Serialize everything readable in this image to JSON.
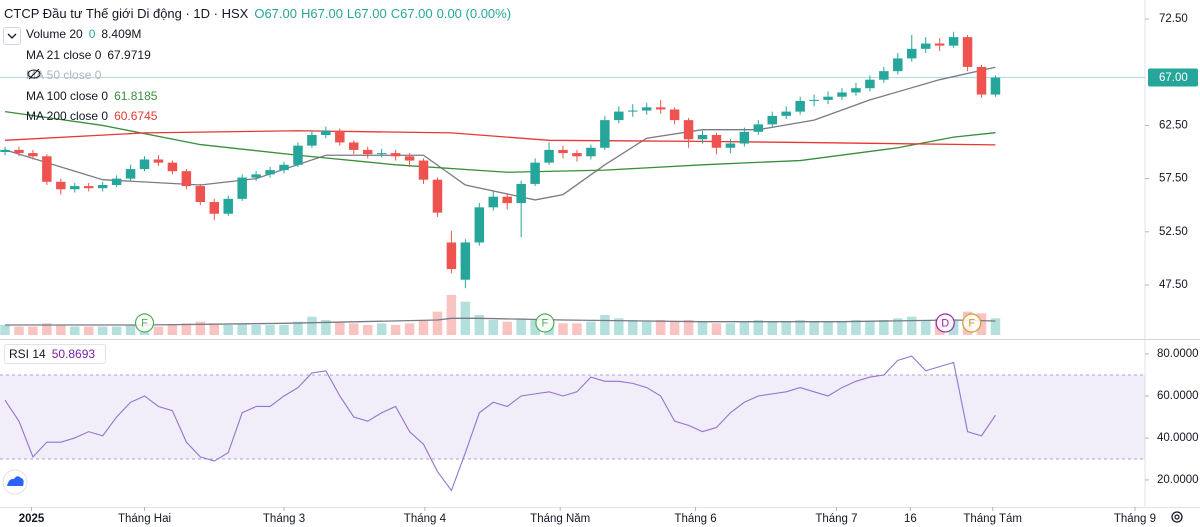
{
  "chart_data": {
    "type": "candlestick",
    "title": "CTCP Đầu tư Thế giới Di động · 1D · HSX",
    "ohlc_legend": [
      "O67.00",
      "H67.00",
      "L67.00",
      "C67.00",
      "0.00 (0.00%)"
    ],
    "up_color": "#26a69a",
    "down_color": "#ef5350",
    "xlim": [
      -0.36,
      81.72
    ],
    "xticks": [
      {
        "value": 1.9,
        "label": "2025"
      },
      {
        "value": 10,
        "label": "Tháng Hai"
      },
      {
        "value": 20,
        "label": "Tháng 3"
      },
      {
        "value": 30.1,
        "label": "Tháng 4"
      },
      {
        "value": 39.8,
        "label": "Tháng Năm"
      },
      {
        "value": 49.5,
        "label": "Tháng 6"
      },
      {
        "value": 59.6,
        "label": "Tháng 7"
      },
      {
        "value": 64.9,
        "label": "16"
      },
      {
        "value": 70.8,
        "label": "Tháng Tám"
      },
      {
        "value": 81,
        "label": "Tháng 9"
      }
    ],
    "ylim": [
      42.52,
      74.29
    ],
    "yticks": [
      {
        "value": 47.5,
        "label": "47.50"
      },
      {
        "value": 52.5,
        "label": "52.50"
      },
      {
        "value": 57.5,
        "label": "57.50"
      },
      {
        "value": 62.5,
        "label": "62.50"
      },
      {
        "value": 72.5,
        "label": "72.50"
      }
    ],
    "x": [
      0,
      1,
      2,
      3,
      4,
      5,
      6,
      7,
      8,
      9,
      10,
      11,
      12,
      13,
      14,
      15,
      16,
      17,
      18,
      19,
      20,
      21,
      22,
      23,
      24,
      25,
      26,
      27,
      28,
      29,
      30,
      31,
      32,
      33,
      34,
      35,
      36,
      37,
      38,
      39,
      40,
      41,
      42,
      43,
      44,
      45,
      46,
      47,
      48,
      49,
      50,
      51,
      52,
      53,
      54,
      55,
      56,
      57,
      58,
      59,
      60,
      61,
      62,
      63,
      64,
      65,
      66,
      67,
      68,
      69,
      70,
      71
    ],
    "open": [
      60.0,
      60.2,
      59.9,
      59.6,
      57.2,
      56.5,
      56.8,
      56.6,
      56.9,
      57.5,
      58.4,
      59.3,
      59.0,
      58.2,
      56.8,
      55.3,
      54.2,
      55.6,
      57.6,
      57.9,
      58.3,
      58.8,
      60.6,
      61.6,
      62.0,
      60.9,
      60.2,
      59.8,
      59.9,
      59.6,
      59.2,
      57.4,
      51.5,
      48.0,
      51.5,
      54.8,
      55.8,
      55.2,
      57.0,
      59.0,
      60.2,
      59.9,
      59.6,
      60.4,
      63.0,
      63.8,
      63.9,
      64.2,
      64.0,
      63.0,
      61.2,
      61.6,
      60.4,
      60.8,
      61.9,
      62.6,
      63.4,
      63.8,
      64.8,
      64.9,
      65.2,
      65.6,
      66.0,
      66.8,
      67.6,
      68.8,
      69.7,
      70.2,
      70.0,
      70.8,
      68.0,
      65.4
    ],
    "high": [
      60.5,
      60.5,
      60.2,
      59.8,
      57.5,
      57.1,
      57.1,
      57.2,
      57.8,
      58.8,
      59.6,
      59.7,
      59.2,
      58.4,
      57.0,
      55.6,
      55.9,
      57.9,
      58.2,
      58.6,
      59.1,
      60.9,
      62.0,
      62.4,
      62.2,
      61.1,
      60.5,
      60.3,
      60.2,
      59.9,
      59.4,
      57.6,
      52.6,
      51.8,
      55.2,
      56.3,
      56.1,
      57.3,
      59.4,
      60.9,
      60.6,
      60.2,
      60.7,
      63.4,
      64.3,
      64.5,
      64.6,
      64.9,
      64.2,
      63.2,
      62.0,
      61.8,
      61.2,
      62.3,
      63.0,
      63.8,
      64.3,
      65.2,
      65.4,
      65.7,
      66.0,
      66.5,
      67.2,
      68.0,
      69.3,
      71.0,
      70.8,
      70.7,
      71.3,
      71.0,
      68.2,
      67.2
    ],
    "low": [
      59.7,
      59.6,
      59.3,
      56.9,
      56.0,
      56.2,
      56.3,
      56.3,
      56.7,
      57.3,
      58.2,
      58.7,
      57.9,
      56.5,
      55.0,
      53.6,
      54.0,
      55.4,
      57.3,
      57.6,
      58.0,
      58.6,
      60.4,
      61.3,
      60.6,
      59.8,
      59.4,
      59.5,
      59.2,
      58.6,
      57.0,
      53.9,
      48.6,
      47.2,
      51.2,
      54.5,
      54.6,
      52.0,
      56.8,
      58.8,
      59.4,
      59.1,
      59.3,
      60.2,
      62.7,
      63.3,
      63.5,
      63.6,
      62.6,
      60.4,
      60.8,
      59.8,
      59.9,
      60.5,
      61.6,
      62.3,
      63.1,
      63.5,
      64.3,
      64.5,
      64.9,
      65.3,
      65.7,
      66.5,
      67.3,
      68.5,
      69.3,
      69.5,
      69.8,
      67.6,
      65.1,
      65.2
    ],
    "close": [
      60.2,
      59.9,
      59.6,
      57.2,
      56.5,
      56.8,
      56.6,
      56.9,
      57.5,
      58.4,
      59.3,
      59.0,
      58.2,
      56.8,
      55.3,
      54.2,
      55.6,
      57.6,
      57.9,
      58.3,
      58.8,
      60.6,
      61.6,
      62.0,
      60.9,
      60.2,
      59.8,
      59.9,
      59.6,
      59.2,
      57.4,
      54.3,
      49.0,
      51.5,
      54.8,
      55.8,
      55.2,
      57.0,
      59.0,
      60.2,
      59.9,
      59.6,
      60.4,
      63.0,
      63.8,
      63.9,
      64.2,
      64.0,
      63.0,
      61.2,
      61.6,
      60.4,
      60.8,
      61.9,
      62.6,
      63.4,
      63.8,
      64.8,
      64.9,
      65.2,
      65.6,
      66.0,
      66.8,
      67.6,
      68.8,
      69.7,
      70.2,
      70.0,
      70.8,
      68.0,
      65.4,
      67.0
    ],
    "volume": {
      "name": "Volume 20",
      "labels": [
        "0",
        "8.409M"
      ],
      "ylim": [
        0,
        30
      ],
      "ma_color": "#787b86",
      "values": [
        6,
        5,
        5,
        7,
        6,
        5,
        5,
        5,
        5,
        6,
        6,
        5,
        6,
        7,
        8,
        7,
        6,
        7,
        6,
        6,
        6,
        8,
        11,
        9,
        8,
        7,
        6,
        7,
        6,
        7,
        9,
        14,
        24,
        20,
        12,
        9,
        8,
        10,
        9,
        8,
        7,
        7,
        8,
        12,
        10,
        9,
        8,
        9,
        8,
        9,
        8,
        7,
        7,
        8,
        9,
        8,
        8,
        9,
        8,
        8,
        8,
        9,
        8,
        9,
        10,
        11,
        9,
        10,
        9,
        14,
        13,
        10
      ],
      "ma_x": [
        0,
        10,
        20,
        31,
        32,
        34,
        40,
        50,
        60,
        68,
        71
      ],
      "ma_values": [
        6,
        6,
        7,
        9,
        10,
        10,
        9,
        8,
        8,
        9,
        8.409
      ]
    },
    "indicators": [
      {
        "name": "MA 21 close 0",
        "color": "#787b86",
        "labels": [
          "67.9719"
        ],
        "x": [
          0,
          7,
          14,
          18,
          23,
          30,
          33,
          38,
          40,
          43,
          46,
          50,
          54,
          58,
          62,
          67,
          71
        ],
        "values": [
          60.2,
          57.4,
          56.9,
          57.5,
          59.7,
          59.7,
          56.9,
          55.5,
          56.0,
          58.8,
          61.3,
          62.1,
          62.1,
          63.0,
          64.9,
          66.8,
          67.9719
        ]
      },
      {
        "name": "MA 50 close 0",
        "visible": false
      },
      {
        "name": "MA 100 close 0",
        "color": "#388e3c",
        "labels": [
          "61.8185"
        ],
        "x": [
          0,
          7,
          14,
          21,
          28,
          36,
          43,
          50,
          57,
          64,
          68,
          71
        ],
        "values": [
          63.8,
          62.5,
          60.7,
          59.7,
          58.8,
          58.1,
          58.3,
          58.8,
          59.2,
          60.4,
          61.4,
          61.8185
        ]
      },
      {
        "name": "MA 200 close 0",
        "color": "#e53935",
        "labels": [
          "60.6745"
        ],
        "x": [
          0,
          10,
          21,
          32,
          39,
          50,
          57,
          71
        ],
        "values": [
          61.1,
          61.8,
          62.0,
          61.8,
          61.1,
          61.0,
          60.9,
          60.6745
        ]
      }
    ],
    "events": [
      {
        "label": "F",
        "x": 10,
        "color": "#4caf50"
      },
      {
        "label": "F",
        "x": 38.7,
        "color": "#4caf50"
      },
      {
        "label": "D",
        "x": 67.4,
        "color": "#9c27b0"
      },
      {
        "label": "F",
        "x": 69.3,
        "color": "#c9a227"
      }
    ],
    "last_price": {
      "value": 67,
      "label": "67.00"
    },
    "rsi": {
      "name": "RSI 14",
      "label": "50.8693",
      "color": "#9575cd",
      "ylim": [
        7.1,
        86.2
      ],
      "yticks": [
        {
          "value": 20,
          "label": "20.0000"
        },
        {
          "value": 40,
          "label": "40.0000"
        },
        {
          "value": 60,
          "label": "60.0000"
        },
        {
          "value": 80,
          "label": "80.0000"
        }
      ],
      "band": [
        30,
        70
      ],
      "values": [
        58,
        48,
        31,
        38,
        38,
        40,
        43,
        41,
        50,
        57,
        60,
        55,
        53,
        38,
        31,
        29,
        33,
        52,
        55,
        55,
        60,
        64,
        71,
        72,
        60,
        50,
        48,
        52,
        55,
        43,
        37,
        24,
        15,
        33,
        52,
        57,
        55,
        60,
        61,
        62,
        60,
        62,
        69,
        67,
        67,
        66,
        64,
        60,
        48,
        46,
        43,
        45,
        52,
        57,
        60,
        61,
        62,
        64,
        62,
        60,
        64,
        67,
        69,
        70,
        77,
        79,
        72,
        74,
        76,
        43,
        41,
        50.8693
      ]
    }
  }
}
